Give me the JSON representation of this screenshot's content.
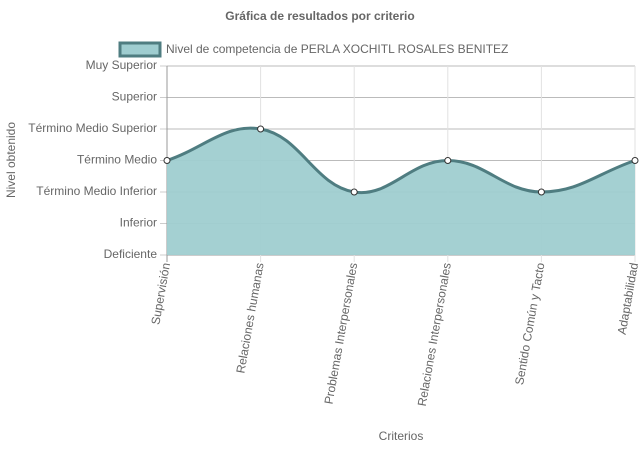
{
  "chart_data": {
    "type": "line",
    "title": "Gráfica de resultados por criterio",
    "x_label": "Criterios",
    "y_label": "Nivel obtenido",
    "categories": [
      "Supervisión",
      "Relaciones humanas",
      "Problemas Interpersonales",
      "Relaciones Interpersonales",
      "Sentido Común y Tacto",
      "Adaptabilidad"
    ],
    "series": [
      {
        "name": "Nivel de competencia de PERLA XOCHITL ROSALES BENITEZ",
        "color": "#4f7d81",
        "fill_color": "#9fcdd0",
        "values": [
          3,
          4,
          2,
          3,
          2,
          3
        ]
      }
    ],
    "ylim": [
      0,
      6
    ],
    "yticks": [
      {
        "value": 0,
        "label": "Deficiente"
      },
      {
        "value": 1,
        "label": "Inferior"
      },
      {
        "value": 2,
        "label": "Término Medio Inferior"
      },
      {
        "value": 3,
        "label": "Término Medio"
      },
      {
        "value": 4,
        "label": "Término Medio Superior"
      },
      {
        "value": 5,
        "label": "Superior"
      },
      {
        "value": 6,
        "label": "Muy Superior"
      }
    ],
    "grid": true,
    "legend": "top"
  }
}
